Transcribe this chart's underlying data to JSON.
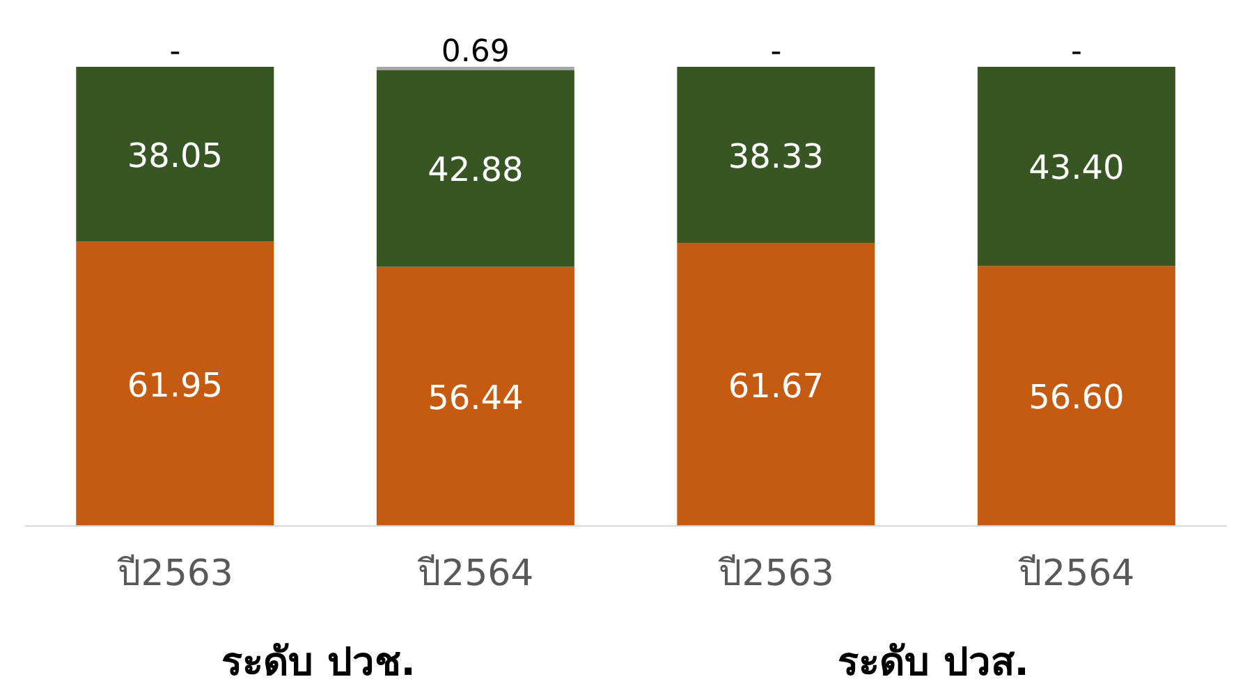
{
  "chart_data": {
    "type": "bar",
    "stacked": true,
    "categories": [
      "ปี2563",
      "ปี2564",
      "ปี2563",
      "ปี2564"
    ],
    "series": [
      {
        "color": "#c55a11",
        "values": [
          61.95,
          56.44,
          61.67,
          56.6
        ],
        "value_labels": [
          "61.95",
          "56.44",
          "61.67",
          "56.60"
        ]
      },
      {
        "color": "#375623",
        "values": [
          38.05,
          42.88,
          38.33,
          43.4
        ],
        "value_labels": [
          "38.05",
          "42.88",
          "38.33",
          "43.40"
        ]
      },
      {
        "color": "#a6a6a6",
        "values": [
          0,
          0.69,
          0,
          0
        ],
        "value_labels": [
          "-",
          "0.69",
          "-",
          "-"
        ]
      }
    ],
    "ylim": [
      0,
      100
    ],
    "tick_labels": "x",
    "annotations": [
      "ระดับ ปวช.",
      "ระดับ ปวส."
    ]
  }
}
